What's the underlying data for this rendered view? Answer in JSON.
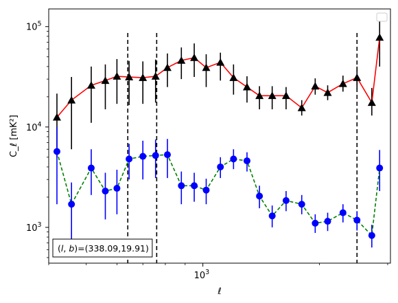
{
  "chart_data": {
    "type": "line",
    "xscale": "log",
    "yscale": "log",
    "xlim": [
      400,
      3050
    ],
    "ylim": [
      440,
      150000
    ],
    "xlabel": "ℓ",
    "ylabel": "C_ℓ  [mK²]",
    "x_ticks": [
      {
        "value": 1000,
        "base": "10",
        "exp": "3"
      }
    ],
    "y_ticks": [
      {
        "value": 1000,
        "base": "10",
        "exp": "3"
      },
      {
        "value": 10000,
        "base": "10",
        "exp": "4"
      },
      {
        "value": 100000,
        "base": "10",
        "exp": "5"
      }
    ],
    "legend": "top-right",
    "legend_entries": [],
    "annotation": "(l, b)=(338.09,19.91)",
    "annotation_parts": {
      "l": "l",
      "b": "b",
      "values": "=(338.09,19.91)"
    },
    "vlines": [
      640,
      760,
      2500
    ],
    "colors": {
      "upper_line": "#ff0000",
      "upper_marker": "#000000",
      "lower_line": "#008000",
      "lower_marker": "#0000ff",
      "lower_err": "#0000ff",
      "upper_err": "#000000"
    },
    "series": [
      {
        "style": "solid",
        "marker": "triangle",
        "x": [
          420,
          458,
          515,
          560,
          600,
          645,
          700,
          755,
          810,
          880,
          950,
          1020,
          1110,
          1200,
          1300,
          1400,
          1510,
          1640,
          1800,
          1950,
          2100,
          2300,
          2500,
          2730,
          2860
        ],
        "y": [
          12500,
          18500,
          26000,
          29000,
          32000,
          31500,
          31000,
          32000,
          39000,
          46000,
          49000,
          39000,
          44000,
          31000,
          25000,
          20500,
          20500,
          20500,
          15500,
          25500,
          22000,
          27000,
          31000,
          17500,
          78000
        ],
        "err_low": [
          7500,
          12500,
          15000,
          14000,
          15000,
          15000,
          14000,
          14500,
          14000,
          16000,
          17500,
          14000,
          15000,
          10000,
          7500,
          5500,
          5500,
          5500,
          2500,
          4500,
          3500,
          4500,
          7000,
          4500,
          38000
        ],
        "err_high": [
          9000,
          13000,
          14000,
          13000,
          15500,
          14000,
          14000,
          15000,
          15000,
          16000,
          19000,
          14000,
          11000,
          11000,
          7000,
          5000,
          5000,
          4500,
          3000,
          5000,
          4000,
          5500,
          9000,
          7000,
          37000
        ]
      },
      {
        "style": "dashed",
        "marker": "circle",
        "x": [
          420,
          458,
          515,
          560,
          600,
          645,
          700,
          755,
          810,
          880,
          950,
          1020,
          1110,
          1200,
          1300,
          1400,
          1510,
          1640,
          1800,
          1950,
          2100,
          2300,
          2500,
          2730,
          2860
        ],
        "y": [
          5700,
          1700,
          3900,
          2300,
          2450,
          4800,
          5100,
          5200,
          5300,
          2600,
          2600,
          2350,
          4000,
          4800,
          4600,
          2050,
          1300,
          1850,
          1700,
          1100,
          1150,
          1400,
          1180,
          830,
          3900
        ],
        "err_low": [
          4000,
          1100,
          1800,
          1100,
          1100,
          1800,
          2100,
          2100,
          2200,
          900,
          800,
          650,
          900,
          1000,
          1000,
          500,
          300,
          400,
          350,
          220,
          230,
          280,
          250,
          200,
          1600
        ],
        "err_high": [
          4300,
          1100,
          2100,
          1200,
          1300,
          2000,
          2200,
          2300,
          2300,
          1000,
          900,
          700,
          1000,
          1200,
          1000,
          550,
          350,
          450,
          400,
          250,
          250,
          300,
          270,
          230,
          2000
        ]
      }
    ]
  }
}
